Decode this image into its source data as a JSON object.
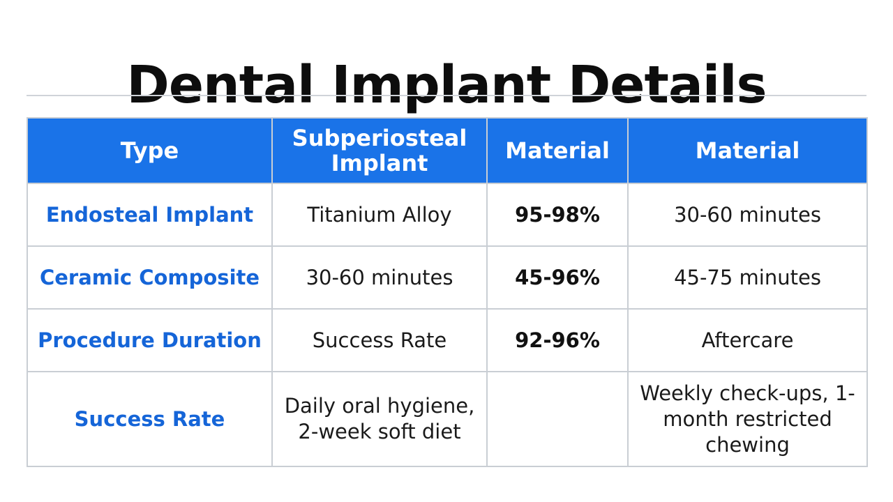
{
  "title": "Dental Implant Details",
  "table": {
    "headers": [
      "Type",
      "Subperiosteal Implant",
      "Material",
      "Material"
    ],
    "rows": [
      [
        "Endosteal Implant",
        "Titanium Alloy",
        "95-98%",
        "30-60 minutes"
      ],
      [
        "Ceramic Composite",
        "30-60 minutes",
        "45-96%",
        "45-75 minutes"
      ],
      [
        "Procedure Duration",
        "Success Rate",
        "92-96%",
        "Aftercare"
      ],
      [
        "Success Rate",
        "Daily oral hygiene, 2-week soft diet",
        "",
        "Weekly check-ups, 1-month restricted chewing"
      ]
    ]
  },
  "colors": {
    "header_bg": "#1a73e8",
    "row_label": "#1565d8",
    "border": "#c9ced4"
  }
}
